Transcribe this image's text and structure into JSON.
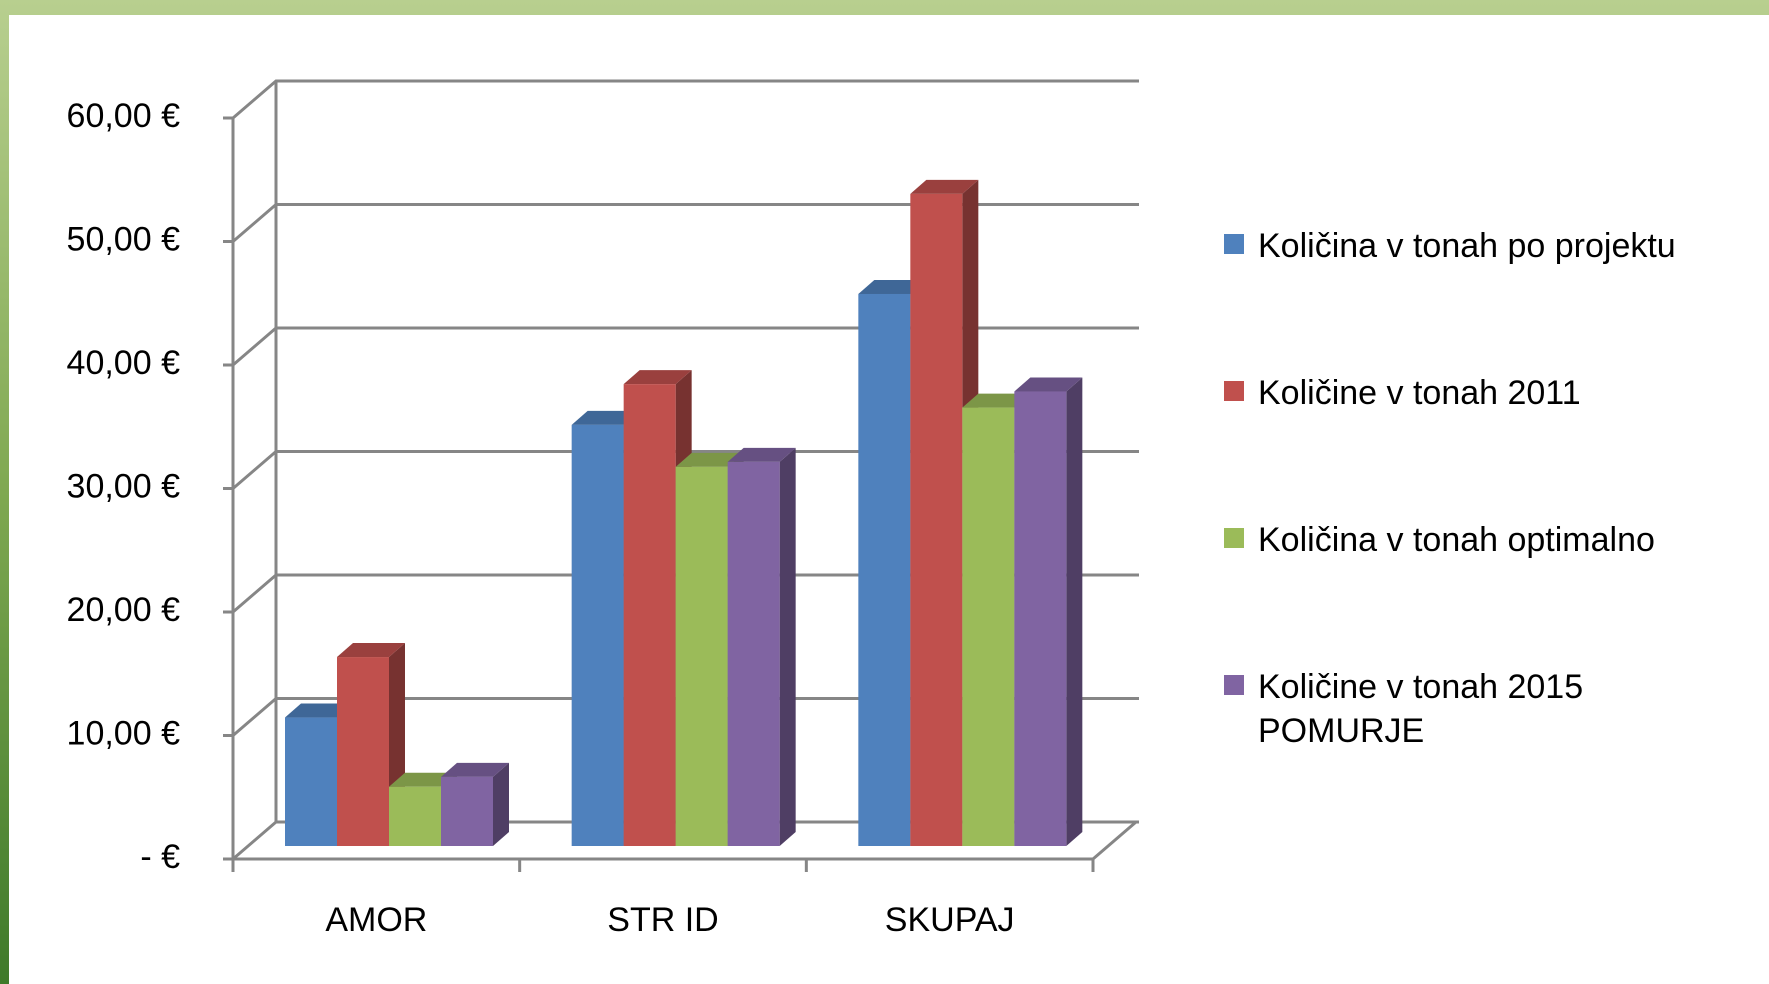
{
  "chart_data": {
    "type": "bar3d",
    "categories": [
      "AMOR",
      "STR ID",
      "SKUPAJ"
    ],
    "series": [
      {
        "name": "Količina v tonah po projektu",
        "color": "#4f81bd",
        "values": [
          10.4,
          34.1,
          44.7
        ]
      },
      {
        "name": "Količine v tonah 2011",
        "color": "#c0504d",
        "values": [
          15.3,
          37.4,
          52.8
        ]
      },
      {
        "name": "Količina v tonah optimalno",
        "color": "#9bbb59",
        "values": [
          4.8,
          30.7,
          35.5
        ]
      },
      {
        "name": "Količine v tonah 2015 POMURJE",
        "color": "#8064a2",
        "values": [
          5.6,
          31.1,
          36.8
        ]
      }
    ],
    "ylim": [
      0,
      60
    ],
    "yticks": [
      {
        "value": 0,
        "label": "-   €"
      },
      {
        "value": 10,
        "label": "10,00 €"
      },
      {
        "value": 20,
        "label": "20,00 €"
      },
      {
        "value": 30,
        "label": "30,00 €"
      },
      {
        "value": 40,
        "label": "40,00 €"
      },
      {
        "value": 50,
        "label": "50,00 €"
      },
      {
        "value": 60,
        "label": "60,00 €"
      }
    ],
    "grid": true,
    "legend": "right"
  }
}
